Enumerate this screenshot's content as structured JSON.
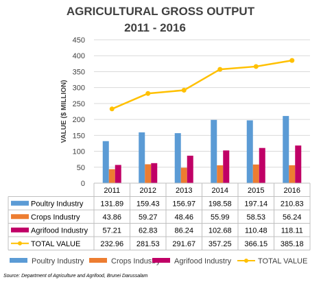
{
  "chart_data": {
    "type": "bar",
    "title": "AGRICULTURAL GROSS OUTPUT",
    "subtitle": "2011 - 2016",
    "xlabel": "",
    "ylabel": "VALUE ($ MILLION)",
    "ylim": [
      0,
      450
    ],
    "yticks": [
      0,
      50,
      100,
      150,
      200,
      250,
      300,
      350,
      400,
      450
    ],
    "grid": true,
    "legend_position": "bottom",
    "categories": [
      "2011",
      "2012",
      "2013",
      "2014",
      "2015",
      "2016"
    ],
    "series": [
      {
        "name": "Poultry Industry",
        "type": "bar",
        "color": "#5B9BD5",
        "values": [
          131.89,
          159.43,
          156.97,
          198.58,
          197.14,
          210.83
        ],
        "labels": [
          "131.89",
          "159.43",
          "156.97",
          "198.58",
          "197.14",
          "210.83"
        ]
      },
      {
        "name": "Crops Industry",
        "type": "bar",
        "color": "#ED7D31",
        "values": [
          43.86,
          59.27,
          48.46,
          55.99,
          58.53,
          56.24
        ],
        "labels": [
          "43.86",
          "59.27",
          "48.46",
          "55.99",
          "58.53",
          "56.24"
        ]
      },
      {
        "name": "Agrifood Industry",
        "type": "bar",
        "color": "#C00066",
        "values": [
          57.21,
          62.83,
          86.24,
          102.68,
          110.48,
          118.11
        ],
        "labels": [
          "57.21",
          "62.83",
          "86.24",
          "102.68",
          "110.48",
          "118.11"
        ]
      },
      {
        "name": "TOTAL VALUE",
        "type": "line",
        "color": "#FFC000",
        "values": [
          232.96,
          281.53,
          291.67,
          357.25,
          366.15,
          385.18
        ],
        "labels": [
          "232.96",
          "281.53",
          "291.67",
          "357.25",
          "366.15",
          "385.18"
        ]
      }
    ],
    "source": "Source: Department of Agriculture and Agrifood, Brunei Darussalam"
  }
}
